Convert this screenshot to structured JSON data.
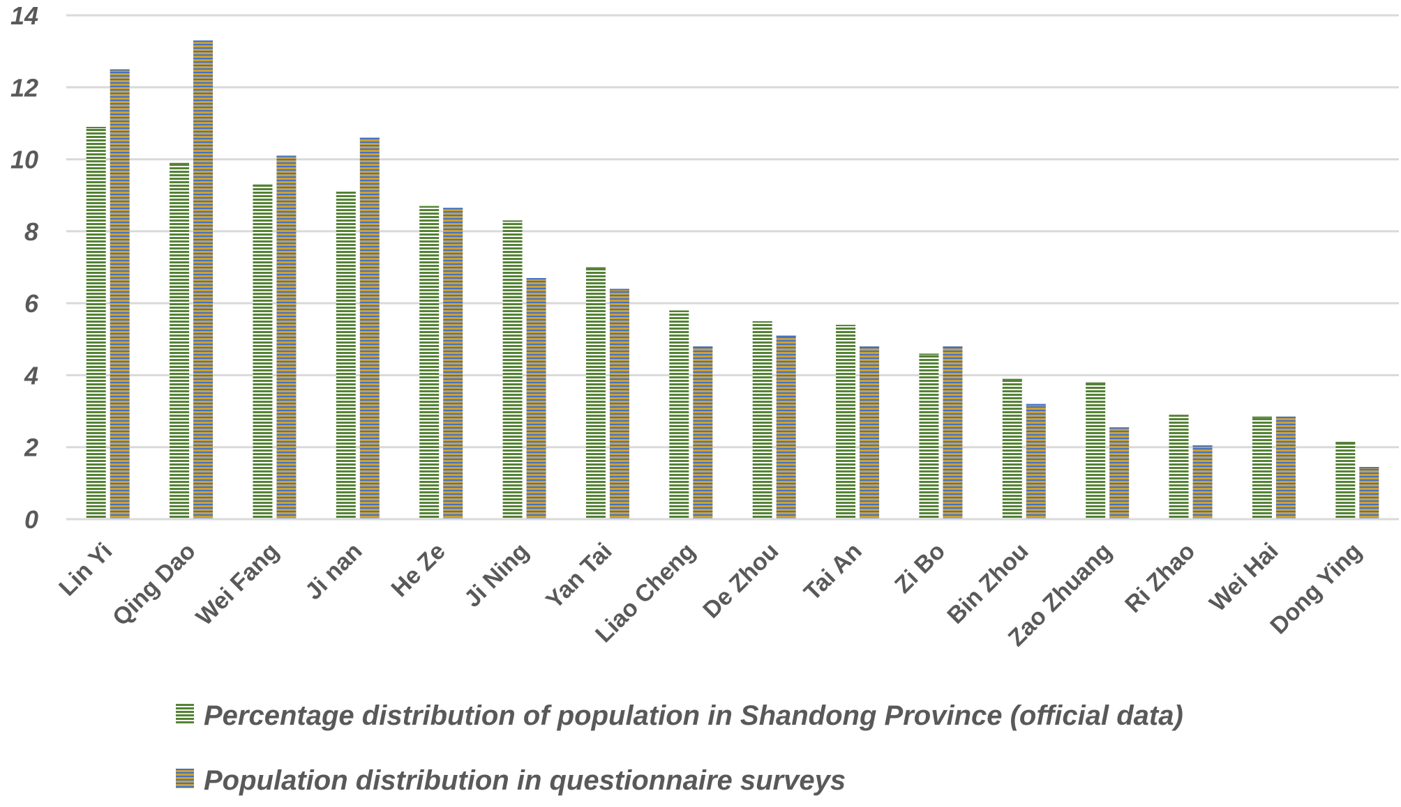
{
  "chart_data": {
    "type": "bar",
    "title": "",
    "xlabel": "",
    "ylabel": "",
    "ylim": [
      0,
      14
    ],
    "yticks": [
      0,
      2,
      4,
      6,
      8,
      10,
      12,
      14
    ],
    "grid": true,
    "legend_position": "bottom",
    "categories": [
      "Lin Yi",
      "Qing Dao",
      "Wei Fang",
      "Ji nan",
      "He Ze",
      "Ji Ning",
      "Yan Tai",
      "Liao Cheng",
      "De Zhou",
      "Tai An",
      "Zi Bo",
      "Bin Zhou",
      "Zao Zhuang",
      "Ri Zhao",
      "Wei Hai",
      "Dong Ying"
    ],
    "series": [
      {
        "name": "Percentage distribution of population in Shandong Province (official data)",
        "values": [
          10.9,
          9.9,
          9.3,
          9.1,
          8.7,
          8.3,
          7.0,
          5.8,
          5.5,
          5.4,
          4.6,
          3.9,
          3.8,
          2.9,
          2.85,
          2.15
        ],
        "color": "#548235",
        "stripe_color": "#ffffff"
      },
      {
        "name": "Population distribution in questionnaire surveys",
        "values": [
          12.5,
          13.3,
          10.1,
          10.6,
          8.65,
          6.7,
          6.4,
          4.8,
          5.1,
          4.8,
          4.8,
          3.2,
          2.55,
          2.05,
          2.85,
          1.45
        ],
        "color": "#c9a13a",
        "stripe_color": "#4472c4"
      }
    ]
  }
}
